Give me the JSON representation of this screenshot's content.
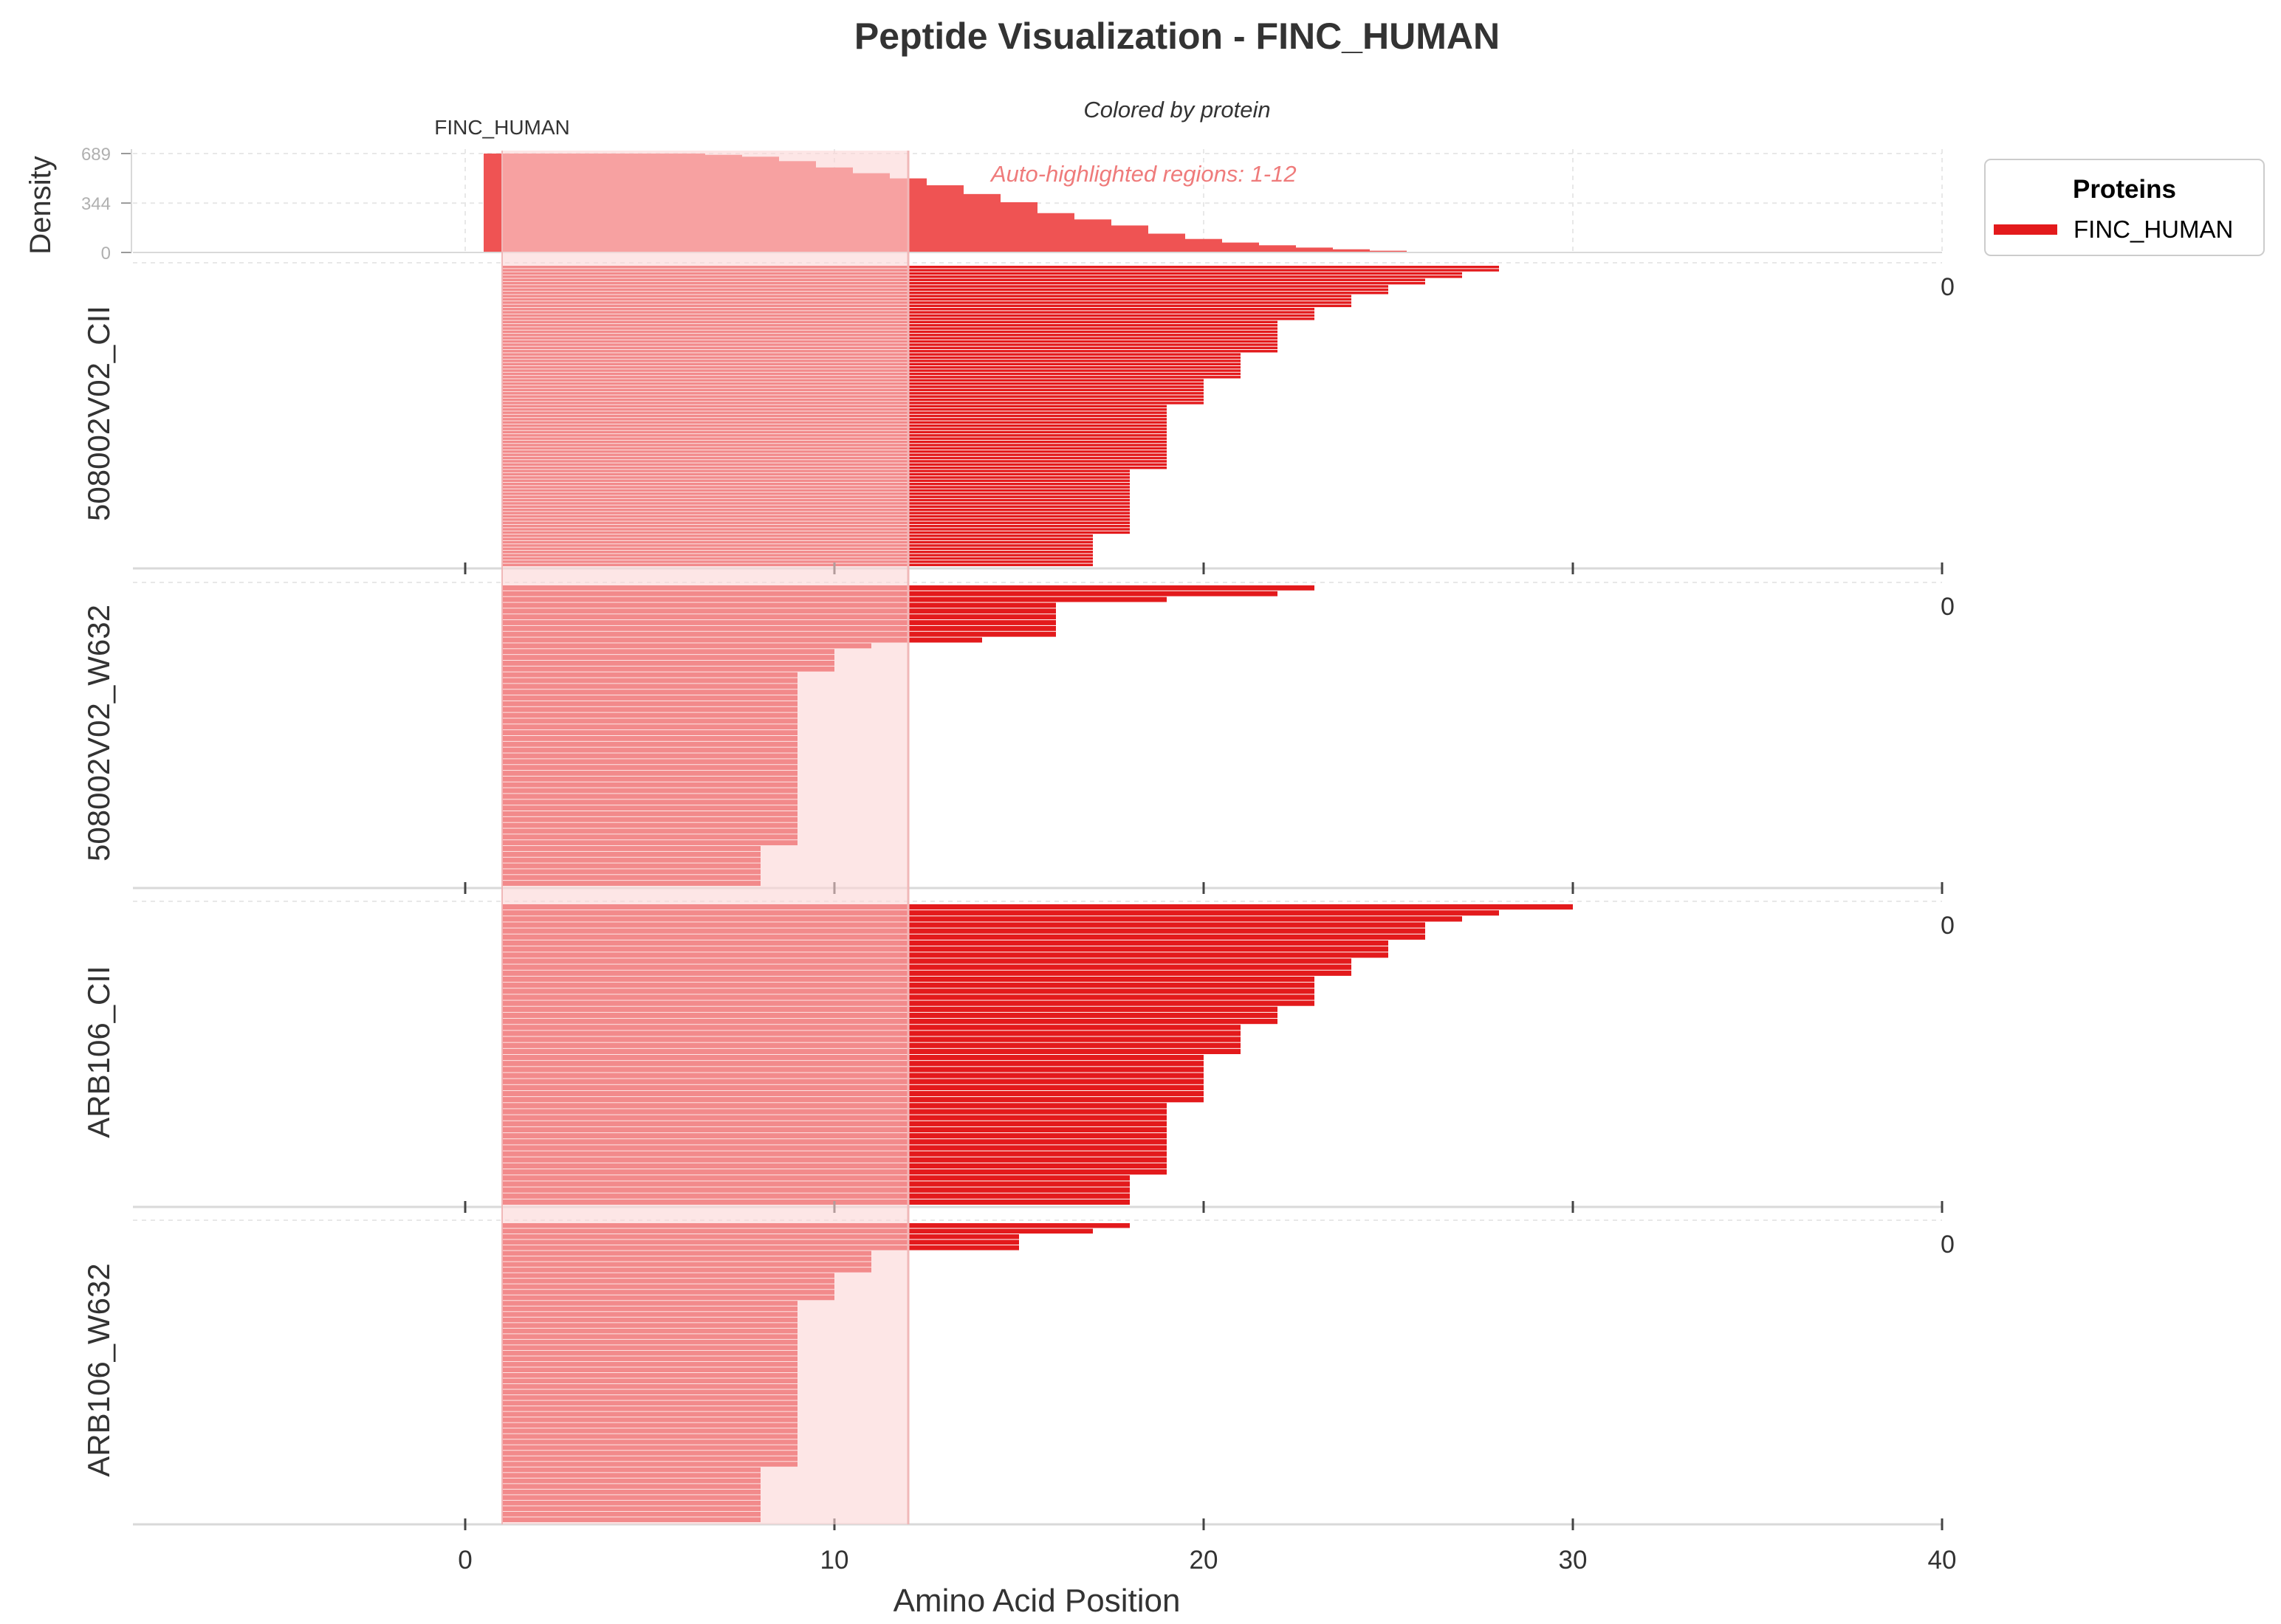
{
  "colors": {
    "protein": "#e31a1c",
    "density_fill": "#ef5353",
    "highlight": "#fcd5d5",
    "highlight_text": "#ef7b7b",
    "frame": "#d9d9d9",
    "text": "#333333",
    "grid": "#e8e8e8"
  },
  "chart_data": {
    "type": "bar",
    "title": "Peptide Visualization - FINC_HUMAN",
    "subtitle": "Colored by protein",
    "highlight_text": "Auto-highlighted regions: 1-12",
    "highlight_region": [
      1,
      12
    ],
    "protein_label": "FINC_HUMAN",
    "xlabel": "Amino Acid Position",
    "xlim": [
      -9,
      40
    ],
    "xticks": [
      0,
      10,
      20,
      30,
      40
    ],
    "legend": {
      "title": "Proteins",
      "entries": [
        "FINC_HUMAN"
      ],
      "placement": "top-right"
    },
    "density": {
      "ylabel": "Density",
      "yticks": [
        0,
        344,
        689
      ],
      "ymax": 689,
      "bins": [
        {
          "x0": 0.5,
          "x1": 6.5,
          "value": 689
        },
        {
          "x0": 6.5,
          "x1": 7.5,
          "value": 680
        },
        {
          "x0": 7.5,
          "x1": 8.5,
          "value": 667
        },
        {
          "x0": 8.5,
          "x1": 9.5,
          "value": 636
        },
        {
          "x0": 9.5,
          "x1": 10.5,
          "value": 592
        },
        {
          "x0": 10.5,
          "x1": 11.5,
          "value": 552
        },
        {
          "x0": 11.5,
          "x1": 12.5,
          "value": 516
        },
        {
          "x0": 12.5,
          "x1": 13.5,
          "value": 468
        },
        {
          "x0": 13.5,
          "x1": 14.5,
          "value": 407
        },
        {
          "x0": 14.5,
          "x1": 15.5,
          "value": 350
        },
        {
          "x0": 15.5,
          "x1": 16.5,
          "value": 274
        },
        {
          "x0": 16.5,
          "x1": 17.5,
          "value": 230
        },
        {
          "x0": 17.5,
          "x1": 18.5,
          "value": 188
        },
        {
          "x0": 18.5,
          "x1": 19.5,
          "value": 131
        },
        {
          "x0": 19.5,
          "x1": 20.5,
          "value": 94
        },
        {
          "x0": 20.5,
          "x1": 21.5,
          "value": 69
        },
        {
          "x0": 21.5,
          "x1": 22.5,
          "value": 50
        },
        {
          "x0": 22.5,
          "x1": 23.5,
          "value": 34
        },
        {
          "x0": 23.5,
          "x1": 24.5,
          "value": 22
        },
        {
          "x0": 24.5,
          "x1": 25.5,
          "value": 12
        },
        {
          "x0": 25.5,
          "x1": 26.5,
          "value": 5
        },
        {
          "x0": 26.5,
          "x1": 28.5,
          "value": 2
        }
      ]
    },
    "samples": [
      {
        "name": "508002V02_CII",
        "count_label": "0",
        "peptide_start": 1,
        "end_groups": [
          {
            "end": 28,
            "count": 2
          },
          {
            "end": 27,
            "count": 2
          },
          {
            "end": 26,
            "count": 2
          },
          {
            "end": 25,
            "count": 3
          },
          {
            "end": 24,
            "count": 4
          },
          {
            "end": 23,
            "count": 4
          },
          {
            "end": 22,
            "count": 10
          },
          {
            "end": 21,
            "count": 8
          },
          {
            "end": 20,
            "count": 8
          },
          {
            "end": 19,
            "count": 20
          },
          {
            "end": 18,
            "count": 20
          },
          {
            "end": 17,
            "count": 10
          }
        ]
      },
      {
        "name": "508002V02_W632",
        "count_label": "0",
        "peptide_start": 1,
        "end_groups": [
          {
            "end": 23,
            "count": 1
          },
          {
            "end": 22,
            "count": 1
          },
          {
            "end": 19,
            "count": 1
          },
          {
            "end": 16,
            "count": 6
          },
          {
            "end": 14,
            "count": 1
          },
          {
            "end": 11,
            "count": 1
          },
          {
            "end": 10,
            "count": 4
          },
          {
            "end": 9,
            "count": 30
          },
          {
            "end": 8,
            "count": 7
          }
        ]
      },
      {
        "name": "ARB106_CII",
        "count_label": "0",
        "peptide_start": 1,
        "end_groups": [
          {
            "end": 30,
            "count": 1
          },
          {
            "end": 28,
            "count": 1
          },
          {
            "end": 27,
            "count": 1
          },
          {
            "end": 26,
            "count": 3
          },
          {
            "end": 25,
            "count": 3
          },
          {
            "end": 24,
            "count": 3
          },
          {
            "end": 23,
            "count": 5
          },
          {
            "end": 22,
            "count": 3
          },
          {
            "end": 21,
            "count": 5
          },
          {
            "end": 20,
            "count": 8
          },
          {
            "end": 19,
            "count": 12
          },
          {
            "end": 18,
            "count": 5
          }
        ]
      },
      {
        "name": "ARB106_W632",
        "count_label": "0",
        "peptide_start": 1,
        "end_groups": [
          {
            "end": 18,
            "count": 1
          },
          {
            "end": 17,
            "count": 1
          },
          {
            "end": 15,
            "count": 3
          },
          {
            "end": 11,
            "count": 4
          },
          {
            "end": 10,
            "count": 5
          },
          {
            "end": 9,
            "count": 30
          },
          {
            "end": 8,
            "count": 10
          }
        ]
      }
    ]
  }
}
